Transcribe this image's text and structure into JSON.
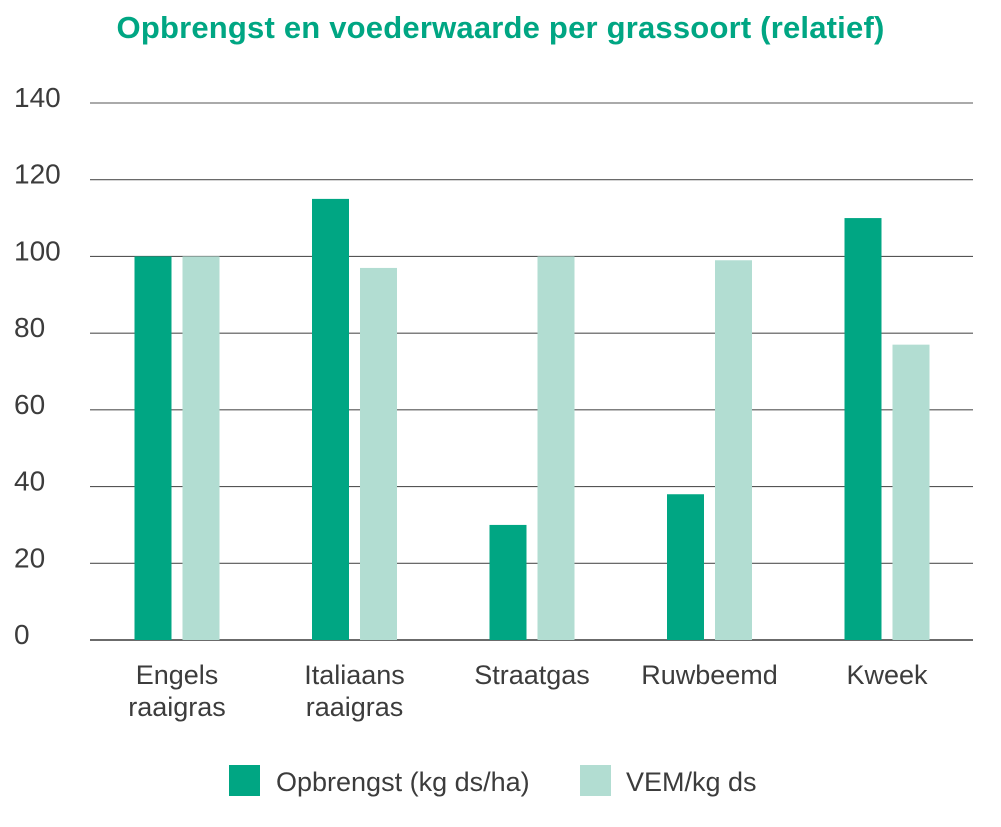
{
  "chart_data": {
    "type": "bar",
    "title": "Opbrengst en voederwaarde per grassoort (relatief)",
    "xlabel": "",
    "ylabel": "",
    "ylim": [
      0,
      140
    ],
    "yticks": [
      0,
      20,
      40,
      60,
      80,
      100,
      120,
      140
    ],
    "grid": true,
    "legend_position": "bottom",
    "categories": [
      "Engels raaigras",
      "Italiaans raaigras",
      "Straatgas",
      "Ruwbeemd",
      "Kweek"
    ],
    "category_lines": [
      [
        "Engels",
        "raaigras"
      ],
      [
        "Italiaans",
        "raaigras"
      ],
      [
        "Straatgas"
      ],
      [
        "Ruwbeemd"
      ],
      [
        "Kweek"
      ]
    ],
    "series": [
      {
        "name": "Opbrengst (kg ds/ha)",
        "color": "#00a683",
        "values": [
          100,
          115,
          30,
          38,
          110
        ]
      },
      {
        "name": "VEM/kg ds",
        "color": "#b2ddd2",
        "values": [
          100,
          97,
          100,
          99,
          77
        ]
      }
    ]
  }
}
